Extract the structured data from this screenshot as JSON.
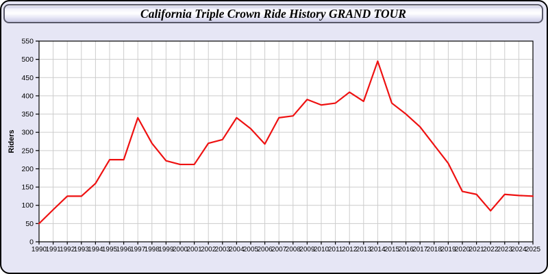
{
  "window": {
    "title": "California Triple Crown Ride History GRAND TOUR"
  },
  "colors": {
    "panel_background": "#e6e6f5",
    "panel_border": "#000000",
    "titlebar_border": "#585868",
    "plot_background": "#ffffff",
    "grid": "#cccccc",
    "axis": "#000000",
    "line": "#ee1111"
  },
  "chart_data": {
    "type": "line",
    "title": "California Triple Crown Ride History GRAND TOUR",
    "xlabel": "",
    "ylabel": "Riders",
    "ylim": [
      0,
      550
    ],
    "ytick_step": 50,
    "grid": true,
    "legend_position": "none",
    "x": [
      1990,
      1991,
      1992,
      1993,
      1994,
      1995,
      1996,
      1997,
      1998,
      1999,
      2000,
      2001,
      2002,
      2003,
      2004,
      2005,
      2006,
      2007,
      2008,
      2009,
      2010,
      2011,
      2012,
      2013,
      2014,
      2015,
      2016,
      2017,
      2018,
      2019,
      2020,
      2021,
      2022,
      2023,
      2024,
      2025
    ],
    "values": [
      50,
      88,
      125,
      125,
      160,
      225,
      225,
      340,
      270,
      222,
      212,
      212,
      270,
      280,
      340,
      310,
      268,
      340,
      345,
      390,
      375,
      380,
      410,
      385,
      495,
      380,
      350,
      315,
      265,
      215,
      138,
      130,
      85,
      130,
      127,
      125
    ]
  }
}
